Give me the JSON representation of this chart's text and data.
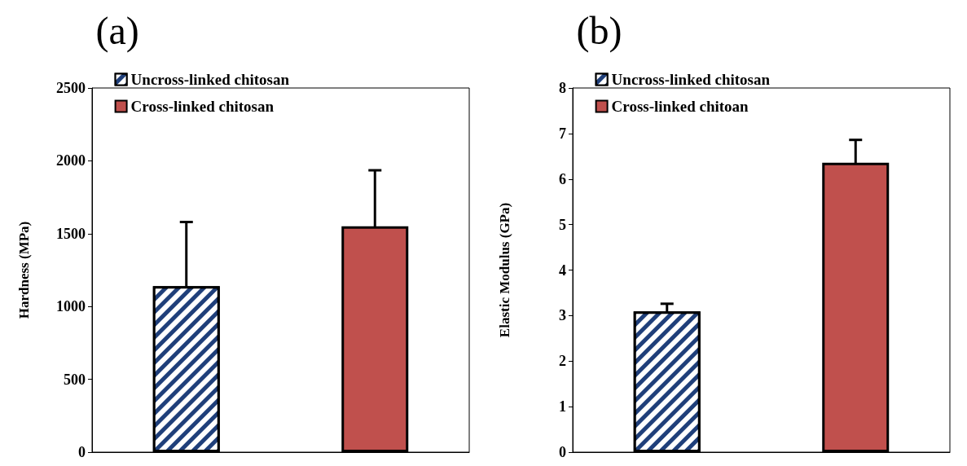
{
  "chart_data": [
    {
      "type": "bar",
      "title": "(a)",
      "ylabel": "Hardness (MPa)",
      "categories": [
        null,
        null
      ],
      "ylim": [
        0,
        2500
      ],
      "yticks": [
        0,
        500,
        1000,
        1500,
        2000,
        2500
      ],
      "grid": false,
      "legend": "top left",
      "series": [
        {
          "name": "Uncross-linked chitosan",
          "color": "#1f3f7a",
          "values": [
            1140,
            null
          ],
          "errors": [
            440,
            null
          ]
        },
        {
          "name": "Cross-linked chitosan",
          "color": "#c0504d",
          "values": [
            null,
            1550
          ],
          "errors": [
            null,
            385
          ]
        }
      ]
    },
    {
      "type": "bar",
      "title": "(b)",
      "ylabel": "Elastic Modulus (GPa)",
      "categories": [
        null,
        null
      ],
      "ylim": [
        0,
        8
      ],
      "yticks": [
        0,
        1,
        2,
        3,
        4,
        5,
        6,
        7,
        8
      ],
      "grid": false,
      "legend": "top left",
      "series": [
        {
          "name": "Uncross-linked chitosan",
          "color": "#1f3f7a",
          "values": [
            3.09,
            null
          ],
          "errors": [
            0.17,
            null
          ]
        },
        {
          "name": "Cross-linked chitoan",
          "color": "#c0504d",
          "values": [
            null,
            6.36
          ],
          "errors": [
            null,
            0.5
          ]
        }
      ]
    }
  ]
}
